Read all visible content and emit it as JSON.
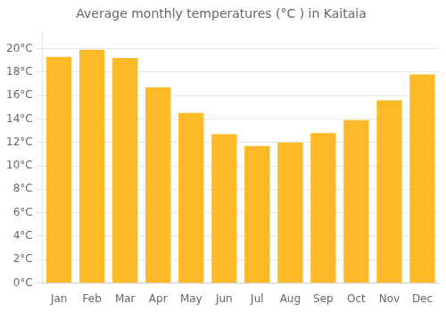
{
  "chart_data": {
    "type": "bar",
    "title": "Average monthly temperatures (°C ) in Kaitaia",
    "categories": [
      "Jan",
      "Feb",
      "Mar",
      "Apr",
      "May",
      "Jun",
      "Jul",
      "Aug",
      "Sep",
      "Oct",
      "Nov",
      "Dec"
    ],
    "values": [
      19.3,
      19.9,
      19.2,
      16.7,
      14.5,
      12.7,
      11.7,
      12.0,
      12.8,
      13.9,
      15.6,
      17.8
    ],
    "color": "#FDB927",
    "ylim": [
      0,
      21.5
    ],
    "yticks": [
      {
        "value": 0,
        "label": "0°C"
      },
      {
        "value": 2,
        "label": "2°C"
      },
      {
        "value": 4,
        "label": "4°C"
      },
      {
        "value": 6,
        "label": "6°C"
      },
      {
        "value": 8,
        "label": "8°C"
      },
      {
        "value": 10,
        "label": "10°C"
      },
      {
        "value": 12,
        "label": "12°C"
      },
      {
        "value": 14,
        "label": "14°C"
      },
      {
        "value": 16,
        "label": "16°C"
      },
      {
        "value": 18,
        "label": "18°C"
      },
      {
        "value": 20,
        "label": "20°C"
      }
    ],
    "grid": true
  }
}
